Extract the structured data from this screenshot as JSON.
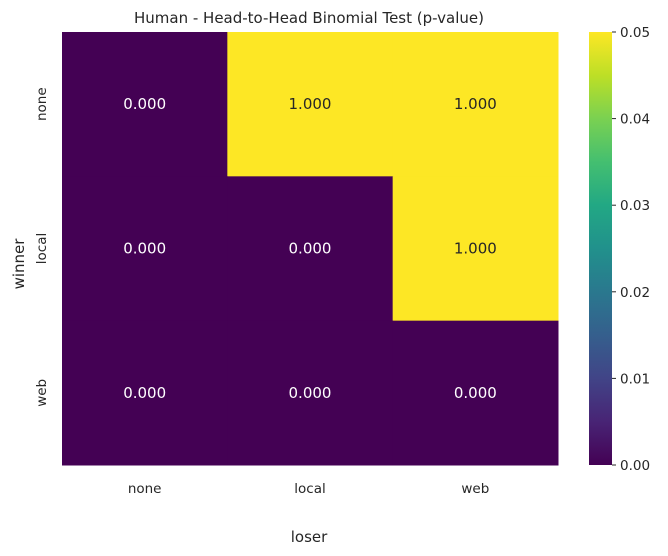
{
  "chart_data": {
    "type": "heatmap",
    "title": "Human - Head-to-Head Binomial Test (p-value)",
    "xlabel": "loser",
    "ylabel": "winner",
    "x_categories": [
      "none",
      "local",
      "web"
    ],
    "y_categories": [
      "none",
      "local",
      "web"
    ],
    "values": [
      [
        0.0,
        1.0,
        1.0
      ],
      [
        0.0,
        0.0,
        1.0
      ],
      [
        0.0,
        0.0,
        0.0
      ]
    ],
    "cell_labels": [
      [
        "0.000",
        "1.000",
        "1.000"
      ],
      [
        "0.000",
        "0.000",
        "1.000"
      ],
      [
        "0.000",
        "0.000",
        "0.000"
      ]
    ],
    "colormap": "viridis",
    "vmin": 0.0,
    "vmax": 0.05,
    "colorbar_ticks": [
      0.0,
      0.01,
      0.02,
      0.03,
      0.04,
      0.05
    ],
    "colorbar_tick_labels": [
      "0.00",
      "0.01",
      "0.02",
      "0.03",
      "0.04",
      "0.05"
    ],
    "colors": {
      "low": "#440154",
      "high": "#fde725",
      "text_on_low": "#ffffff",
      "text_on_high": "#262626"
    }
  }
}
